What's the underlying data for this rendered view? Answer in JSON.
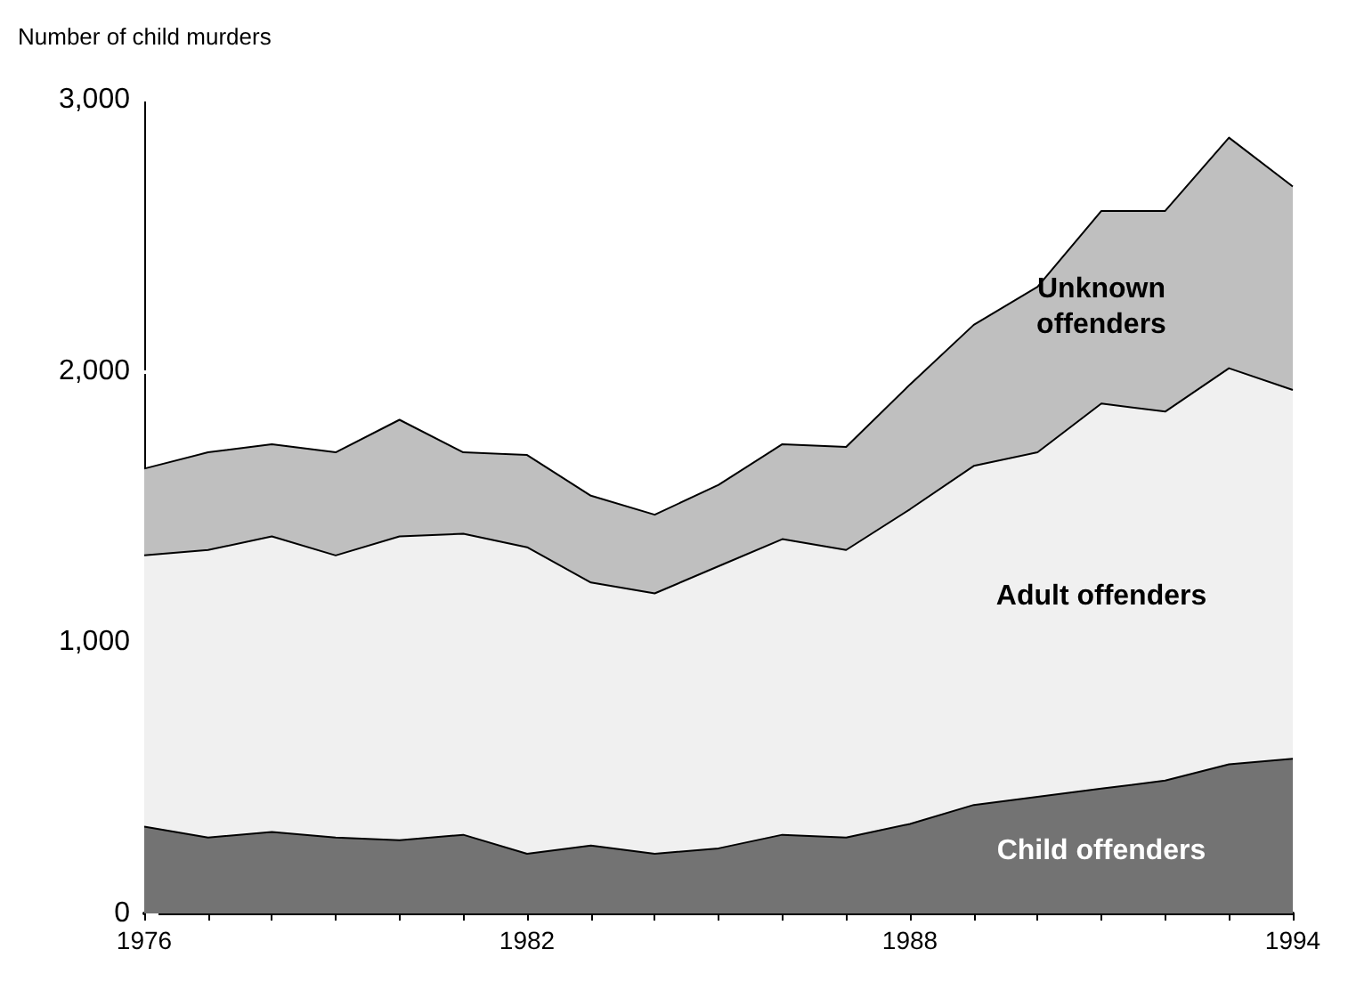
{
  "chart_data": {
    "type": "area",
    "stacked": true,
    "ylabel": "Number of child murders",
    "x": [
      1976,
      1977,
      1978,
      1979,
      1980,
      1981,
      1982,
      1983,
      1984,
      1985,
      1986,
      1987,
      1988,
      1989,
      1990,
      1991,
      1992,
      1993,
      1994
    ],
    "series": [
      {
        "name": "Child offenders",
        "color": "#737373",
        "values": [
          320,
          280,
          300,
          280,
          270,
          290,
          220,
          250,
          220,
          240,
          290,
          280,
          330,
          400,
          430,
          460,
          490,
          550,
          570
        ]
      },
      {
        "name": "Adult offenders",
        "color": "#f0f0f0",
        "values": [
          1000,
          1060,
          1090,
          1040,
          1120,
          1110,
          1130,
          970,
          960,
          1040,
          1090,
          1060,
          1160,
          1250,
          1270,
          1420,
          1360,
          1460,
          1360
        ]
      },
      {
        "name": "Unknown offenders",
        "color": "#bfbfbf",
        "values": [
          320,
          360,
          340,
          380,
          430,
          300,
          340,
          320,
          290,
          300,
          350,
          380,
          460,
          520,
          610,
          710,
          740,
          850,
          750
        ]
      }
    ],
    "xlim": [
      1976,
      1994
    ],
    "xticks": [
      1976,
      {
        "value": 1977,
        "label": null
      },
      {
        "value": 1978,
        "label": null
      },
      {
        "value": 1979,
        "label": null
      },
      {
        "value": 1980,
        "label": null
      },
      {
        "value": 1981,
        "label": null
      },
      1982,
      {
        "value": 1983,
        "label": null
      },
      {
        "value": 1984,
        "label": null
      },
      {
        "value": 1985,
        "label": null
      },
      {
        "value": 1986,
        "label": null
      },
      {
        "value": 1987,
        "label": null
      },
      1988,
      {
        "value": 1989,
        "label": null
      },
      {
        "value": 1990,
        "label": null
      },
      {
        "value": 1991,
        "label": null
      },
      {
        "value": 1992,
        "label": null
      },
      {
        "value": 1993,
        "label": null
      },
      1994
    ],
    "ylim": [
      0,
      3000
    ],
    "yticks": [
      0,
      {
        "value": 1000,
        "label": "1,000"
      },
      {
        "value": 2000,
        "label": "2,000"
      },
      {
        "value": 3000,
        "label": "3,000"
      }
    ],
    "grid": false,
    "legend": false,
    "marker": "none",
    "line_style": "solid"
  }
}
